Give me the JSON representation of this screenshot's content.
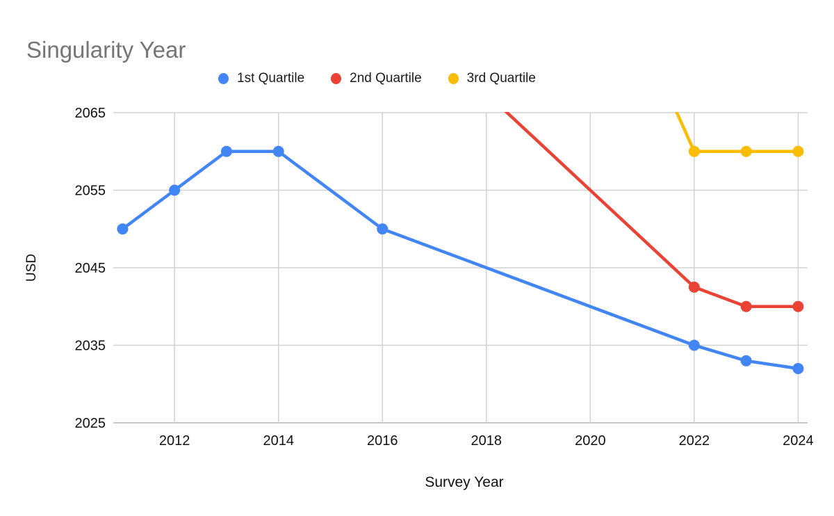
{
  "page": {
    "background": "#ffffff"
  },
  "chart_data": {
    "type": "line",
    "title": "Singularity Year",
    "xlabel": "Survey Year",
    "ylabel": "USD",
    "x_ticks": [
      2012,
      2014,
      2016,
      2018,
      2020,
      2022,
      2024
    ],
    "y_ticks": [
      2025,
      2035,
      2045,
      2055,
      2065
    ],
    "ylim": [
      2025,
      2065
    ],
    "x_range_years": [
      2011,
      2024
    ],
    "grid": true,
    "legend_position": "top-center",
    "series": [
      {
        "name": "1st Quartile",
        "color": "#4285F4",
        "points": [
          [
            2011,
            2050
          ],
          [
            2012,
            2055
          ],
          [
            2013,
            2060
          ],
          [
            2014,
            2060
          ],
          [
            2016,
            2050
          ],
          [
            2022,
            2035
          ],
          [
            2023,
            2033
          ],
          [
            2024,
            2032
          ]
        ]
      },
      {
        "name": "2nd Quartile",
        "color": "#EA4335",
        "points": [
          [
            2016,
            2080
          ],
          [
            2022,
            2042.5
          ],
          [
            2023,
            2040
          ],
          [
            2024,
            2040
          ]
        ],
        "clipped_above_axis": true
      },
      {
        "name": "3rd Quartile",
        "color": "#FBBC04",
        "points": [
          [
            2016,
            2150
          ],
          [
            2022,
            2060
          ],
          [
            2023,
            2060
          ],
          [
            2024,
            2060
          ]
        ],
        "clipped_above_axis": true
      }
    ],
    "style": {
      "title_color": "#757575",
      "grid_color": "#d2d2d2",
      "baseline_color": "#c6c6c6",
      "tick_color": "#111111"
    }
  }
}
